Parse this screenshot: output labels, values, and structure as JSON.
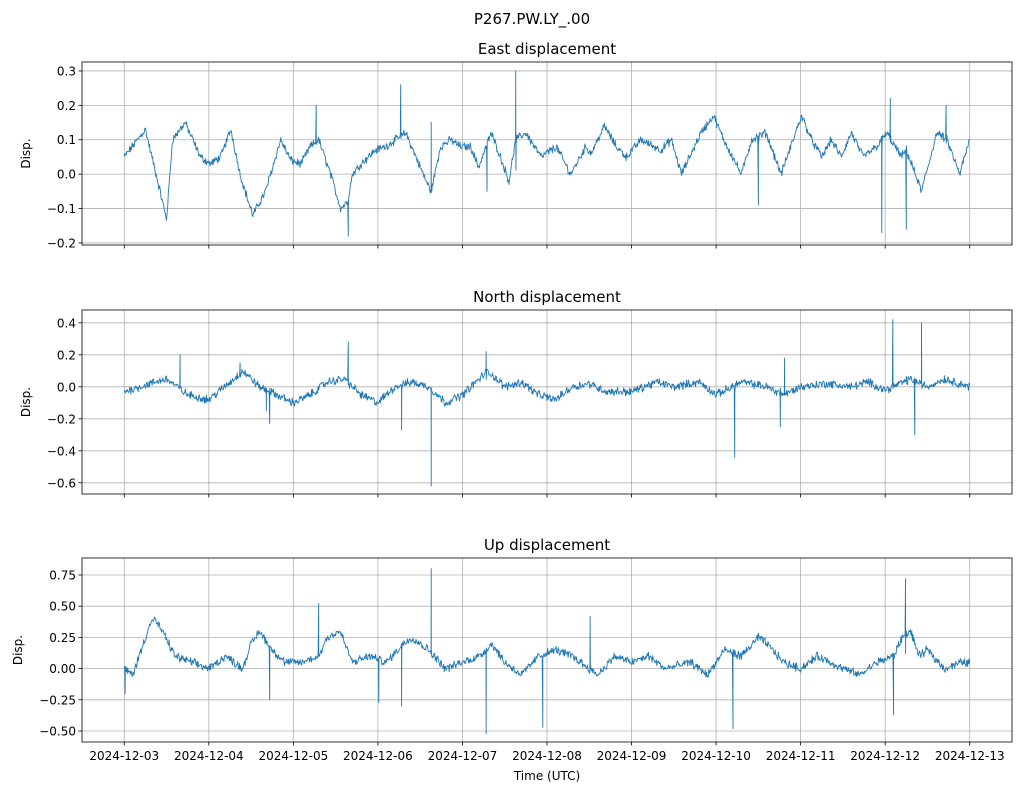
{
  "figure_title": "P267.PW.LY_.00",
  "chart_data": [
    {
      "type": "line",
      "title": "East displacement",
      "xlabel": "",
      "ylabel": "Disp.",
      "ylim": [
        -0.206,
        0.326
      ],
      "yticks": [
        -0.2,
        -0.1,
        0.0,
        0.1,
        0.2,
        0.3
      ],
      "ytick_labels": [
        "−0.2",
        "−0.1",
        "0.0",
        "0.1",
        "0.2",
        "0.3"
      ],
      "color": "#1f77b4",
      "x_unit": "days since 2024-12-03 00:00 UTC",
      "x": [
        0,
        0.25,
        0.5,
        0.57,
        0.72,
        0.9,
        1.02,
        1.14,
        1.26,
        1.37,
        1.43,
        1.52,
        1.67,
        1.79,
        1.85,
        1.97,
        2.09,
        2.2,
        2.3,
        2.44,
        2.56,
        2.64,
        2.7,
        2.8,
        2.97,
        3.09,
        3.21,
        3.33,
        3.45,
        3.57,
        3.63,
        3.74,
        3.86,
        3.98,
        4.1,
        4.19,
        4.34,
        4.45,
        4.55,
        4.63,
        4.75,
        4.93,
        5.11,
        5.28,
        5.46,
        5.52,
        5.68,
        5.82,
        5.94,
        6.11,
        6.35,
        6.47,
        6.59,
        6.82,
        6.97,
        7.09,
        7.3,
        7.42,
        7.59,
        7.77,
        8.01,
        8.13,
        8.25,
        8.36,
        8.48,
        8.6,
        8.74,
        8.9,
        9.02,
        9.19,
        9.25,
        9.43,
        9.61,
        9.73,
        9.88,
        10
      ],
      "y": [
        0.05,
        0.13,
        -0.13,
        0.1,
        0.15,
        0.05,
        0.03,
        0.05,
        0.13,
        0.0,
        -0.05,
        -0.12,
        -0.05,
        0.05,
        0.1,
        0.04,
        0.03,
        0.08,
        0.1,
        0.0,
        -0.1,
        -0.08,
        0.0,
        0.03,
        0.07,
        0.08,
        0.1,
        0.12,
        0.05,
        -0.02,
        -0.05,
        0.08,
        0.1,
        0.08,
        0.08,
        0.02,
        0.12,
        0.05,
        -0.02,
        0.1,
        0.12,
        0.05,
        0.08,
        0.0,
        0.08,
        0.06,
        0.14,
        0.08,
        0.05,
        0.1,
        0.07,
        0.1,
        0.0,
        0.12,
        0.17,
        0.1,
        0.0,
        0.1,
        0.12,
        0.0,
        0.17,
        0.1,
        0.05,
        0.1,
        0.05,
        0.12,
        0.05,
        0.08,
        0.12,
        0.05,
        0.07,
        -0.05,
        0.12,
        0.1,
        0.0,
        0.1
      ],
      "spikes": [
        [
          2.27,
          0.2
        ],
        [
          2.65,
          -0.18
        ],
        [
          3.27,
          0.26
        ],
        [
          3.63,
          0.15
        ],
        [
          4.63,
          0.3
        ],
        [
          4.29,
          -0.05
        ],
        [
          7.5,
          -0.09
        ],
        [
          8.96,
          -0.17
        ],
        [
          9.06,
          0.22
        ],
        [
          9.25,
          -0.16
        ],
        [
          9.72,
          0.2
        ]
      ]
    },
    {
      "type": "line",
      "title": "North displacement",
      "xlabel": "",
      "ylabel": "Disp.",
      "ylim": [
        -0.67,
        0.48
      ],
      "yticks": [
        -0.6,
        -0.4,
        -0.2,
        0.0,
        0.2,
        0.4
      ],
      "ytick_labels": [
        "−0.6",
        "−0.4",
        "−0.2",
        "0.0",
        "0.2",
        "0.4"
      ],
      "color": "#1f77b4",
      "x_unit": "days since 2024-12-03 00:00 UTC",
      "x": [
        0,
        0.5,
        0.75,
        1.0,
        1.3,
        1.4,
        1.6,
        1.8,
        2.0,
        2.2,
        2.4,
        2.6,
        2.8,
        3.0,
        3.2,
        3.4,
        3.6,
        3.8,
        4.0,
        4.2,
        4.3,
        4.5,
        4.7,
        4.9,
        5.1,
        5.3,
        5.5,
        5.7,
        6.0,
        6.3,
        6.5,
        6.8,
        7.0,
        7.3,
        7.6,
        7.8,
        8.0,
        8.3,
        8.6,
        8.8,
        9.0,
        9.3,
        9.5,
        9.7,
        10
      ],
      "y": [
        -0.03,
        0.05,
        -0.05,
        -0.08,
        0.05,
        0.1,
        0.0,
        -0.05,
        -0.1,
        -0.05,
        0.03,
        0.05,
        -0.05,
        -0.1,
        0.0,
        0.03,
        0.0,
        -0.1,
        -0.05,
        0.05,
        0.1,
        0.0,
        0.03,
        -0.05,
        -0.08,
        0.0,
        0.02,
        -0.03,
        -0.03,
        0.03,
        0.0,
        0.03,
        -0.05,
        0.03,
        0.0,
        -0.05,
        0.0,
        0.02,
        0.0,
        0.03,
        -0.02,
        0.05,
        0.0,
        0.05,
        0.0
      ],
      "spikes": [
        [
          0.66,
          0.2
        ],
        [
          1.37,
          0.15
        ],
        [
          1.68,
          -0.15
        ],
        [
          1.72,
          -0.23
        ],
        [
          2.65,
          0.28
        ],
        [
          3.28,
          -0.27
        ],
        [
          3.63,
          -0.62
        ],
        [
          4.28,
          0.22
        ],
        [
          7.22,
          -0.44
        ],
        [
          7.81,
          0.18
        ],
        [
          7.76,
          -0.25
        ],
        [
          9.09,
          0.42
        ],
        [
          9.35,
          -0.3
        ],
        [
          9.43,
          0.4
        ]
      ]
    },
    {
      "type": "line",
      "title": "Up displacement",
      "xlabel": "Time (UTC)",
      "ylabel": "Disp.",
      "ylim": [
        -0.588,
        0.886
      ],
      "yticks": [
        -0.5,
        -0.25,
        0.0,
        0.25,
        0.5,
        0.75
      ],
      "ytick_labels": [
        "−0.50",
        "−0.25",
        "0.00",
        "0.25",
        "0.50",
        "0.75"
      ],
      "color": "#1f77b4",
      "x_unit": "days since 2024-12-03 00:00 UTC",
      "x": [
        0,
        0.1,
        0.2,
        0.3,
        0.35,
        0.45,
        0.6,
        0.8,
        1.0,
        1.2,
        1.3,
        1.4,
        1.5,
        1.6,
        1.75,
        1.9,
        2.1,
        2.3,
        2.4,
        2.55,
        2.7,
        2.9,
        3.1,
        3.3,
        3.4,
        3.6,
        3.8,
        4.0,
        4.2,
        4.35,
        4.5,
        4.7,
        4.9,
        5.1,
        5.3,
        5.5,
        5.6,
        5.8,
        6.0,
        6.2,
        6.4,
        6.7,
        6.9,
        7.1,
        7.3,
        7.5,
        7.6,
        7.8,
        8.0,
        8.2,
        8.5,
        8.7,
        8.9,
        9.1,
        9.2,
        9.3,
        9.4,
        9.5,
        9.7,
        9.9,
        10
      ],
      "y": [
        0.0,
        -0.05,
        0.15,
        0.35,
        0.4,
        0.3,
        0.1,
        0.05,
        0.0,
        0.1,
        0.05,
        0.0,
        0.2,
        0.3,
        0.15,
        0.05,
        0.05,
        0.1,
        0.25,
        0.3,
        0.05,
        0.1,
        0.05,
        0.2,
        0.25,
        0.15,
        0.0,
        0.05,
        0.1,
        0.2,
        0.05,
        -0.05,
        0.1,
        0.15,
        0.1,
        0.0,
        -0.05,
        0.1,
        0.05,
        0.1,
        0.0,
        0.05,
        -0.05,
        0.15,
        0.1,
        0.25,
        0.2,
        0.05,
        0.0,
        0.1,
        0.0,
        -0.05,
        0.05,
        0.1,
        0.25,
        0.3,
        0.1,
        0.15,
        0.0,
        0.05,
        0.05
      ],
      "spikes": [
        [
          0.01,
          -0.2
        ],
        [
          1.72,
          -0.25
        ],
        [
          2.3,
          0.52
        ],
        [
          3.01,
          -0.27
        ],
        [
          3.28,
          -0.3
        ],
        [
          3.63,
          0.8
        ],
        [
          4.28,
          -0.52
        ],
        [
          4.95,
          -0.47
        ],
        [
          5.51,
          0.42
        ],
        [
          7.2,
          -0.48
        ],
        [
          9.1,
          -0.37
        ],
        [
          9.24,
          0.72
        ]
      ]
    }
  ],
  "xticks_days": [
    0,
    1,
    2,
    3,
    4,
    5,
    6,
    7,
    8,
    9,
    10
  ],
  "xtick_labels": [
    "2024-12-03",
    "2024-12-04",
    "2024-12-05",
    "2024-12-06",
    "2024-12-07",
    "2024-12-08",
    "2024-12-09",
    "2024-12-10",
    "2024-12-11",
    "2024-12-12",
    "2024-12-13"
  ],
  "xlim_days": [
    -0.5,
    10.5
  ]
}
